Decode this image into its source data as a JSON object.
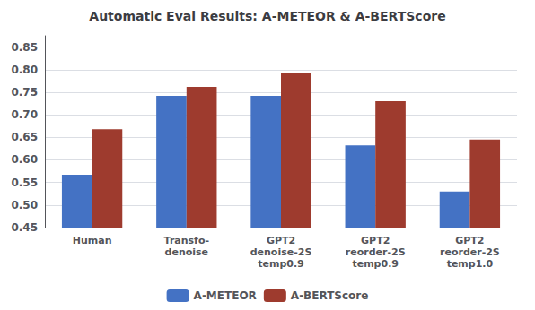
{
  "chart_data": {
    "type": "bar",
    "title": "Automatic Eval Results: A-METEOR & A-BERTScore",
    "categories": [
      "Human",
      "Transfo-\ndenoise",
      "GPT2\ndenoise-2S\ntemp0.9",
      "GPT2\nreorder-2S\ntemp0.9",
      "GPT2\nreorder-2S\ntemp1.0"
    ],
    "series": [
      {
        "name": "A-METEOR",
        "color": "#4472C4",
        "values": [
          0.567,
          0.742,
          0.742,
          0.632,
          0.53
        ]
      },
      {
        "name": "A-BERTScore",
        "color": "#9E3B2E",
        "values": [
          0.668,
          0.762,
          0.793,
          0.73,
          0.645
        ]
      }
    ],
    "ylim": [
      0.45,
      0.875
    ],
    "yticks": [
      0.45,
      {
        "value": 0.5,
        "label": "0.50"
      },
      0.55,
      {
        "value": 0.6,
        "label": "0.60"
      },
      0.65,
      {
        "value": 0.7,
        "label": "0.70"
      },
      0.75,
      {
        "value": 0.8,
        "label": "0.80"
      },
      0.85
    ],
    "grid": true,
    "legend": "bottom"
  }
}
